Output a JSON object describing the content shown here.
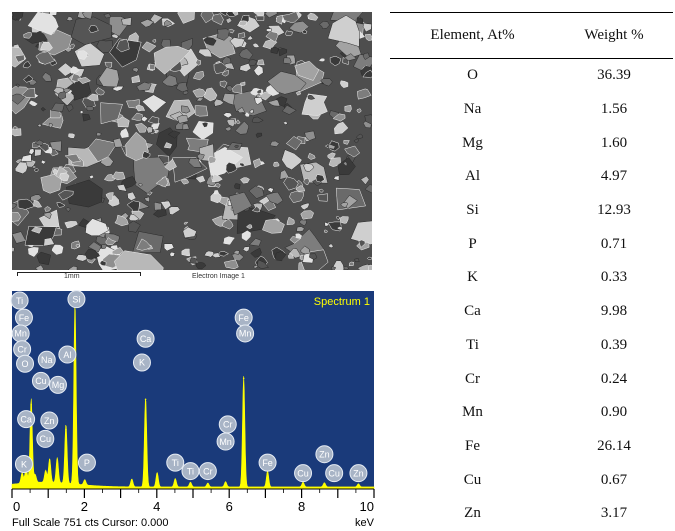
{
  "sem": {
    "scale_label": "1mm",
    "image_label": "Electron Image 1"
  },
  "chart_data": {
    "type": "line",
    "title": "Spectrum 1",
    "xlabel": "keV",
    "xlim": [
      0,
      10
    ],
    "ylim": [
      0,
      751
    ],
    "x_ticks": [
      0,
      2,
      4,
      6,
      8,
      10
    ],
    "x_tick_labels": [
      "0",
      "2",
      "4",
      "6",
      "8",
      "10"
    ],
    "footer": "Full Scale 751 cts Cursor: 0.000",
    "colors": {
      "background": "#1a3a7a",
      "spectrum": "#ffff00",
      "axis": "#000000",
      "title": "#ffff00"
    },
    "peaks": [
      {
        "x": 0.28,
        "y": 40
      },
      {
        "x": 0.39,
        "y": 60
      },
      {
        "x": 0.53,
        "y": 320
      },
      {
        "x": 0.64,
        "y": 30
      },
      {
        "x": 0.93,
        "y": 45
      },
      {
        "x": 1.04,
        "y": 90
      },
      {
        "x": 1.25,
        "y": 95
      },
      {
        "x": 1.49,
        "y": 225
      },
      {
        "x": 1.74,
        "y": 690
      },
      {
        "x": 2.01,
        "y": 20
      },
      {
        "x": 3.31,
        "y": 30
      },
      {
        "x": 3.69,
        "y": 340
      },
      {
        "x": 4.01,
        "y": 55
      },
      {
        "x": 4.51,
        "y": 32
      },
      {
        "x": 4.93,
        "y": 18
      },
      {
        "x": 5.41,
        "y": 15
      },
      {
        "x": 5.9,
        "y": 20
      },
      {
        "x": 6.4,
        "y": 420
      },
      {
        "x": 7.06,
        "y": 60
      },
      {
        "x": 8.04,
        "y": 18
      },
      {
        "x": 8.63,
        "y": 16
      },
      {
        "x": 9.57,
        "y": 12
      }
    ],
    "annotations": [
      {
        "text": "Ti",
        "x": 0.21,
        "y": 715
      },
      {
        "text": "Fe",
        "x": 0.33,
        "y": 650
      },
      {
        "text": "Mn",
        "x": 0.24,
        "y": 590
      },
      {
        "text": "Cr",
        "x": 0.28,
        "y": 530
      },
      {
        "text": "O",
        "x": 0.36,
        "y": 475
      },
      {
        "text": "Na",
        "x": 0.96,
        "y": 490
      },
      {
        "text": "Al",
        "x": 1.53,
        "y": 510
      },
      {
        "text": "Cu",
        "x": 0.8,
        "y": 410
      },
      {
        "text": "Mg",
        "x": 1.27,
        "y": 395
      },
      {
        "text": "Ca",
        "x": 0.39,
        "y": 265
      },
      {
        "text": "Zn",
        "x": 1.03,
        "y": 260
      },
      {
        "text": "Cu",
        "x": 0.92,
        "y": 190
      },
      {
        "text": "K",
        "x": 0.33,
        "y": 95
      },
      {
        "text": "Si",
        "x": 1.78,
        "y": 720
      },
      {
        "text": "P",
        "x": 2.07,
        "y": 100
      },
      {
        "text": "Ca",
        "x": 3.69,
        "y": 570
      },
      {
        "text": "K",
        "x": 3.59,
        "y": 480
      },
      {
        "text": "Ti",
        "x": 4.51,
        "y": 100
      },
      {
        "text": "Ti",
        "x": 4.93,
        "y": 68
      },
      {
        "text": "Cr",
        "x": 5.41,
        "y": 68
      },
      {
        "text": "Cr",
        "x": 5.96,
        "y": 245
      },
      {
        "text": "Mn",
        "x": 5.9,
        "y": 180
      },
      {
        "text": "Fe",
        "x": 6.4,
        "y": 650
      },
      {
        "text": "Mn",
        "x": 6.44,
        "y": 590
      },
      {
        "text": "Fe",
        "x": 7.06,
        "y": 100
      },
      {
        "text": "Cu",
        "x": 8.04,
        "y": 60
      },
      {
        "text": "Zn",
        "x": 8.63,
        "y": 132
      },
      {
        "text": "Cu",
        "x": 8.9,
        "y": 60
      },
      {
        "text": "Zn",
        "x": 9.57,
        "y": 60
      }
    ]
  },
  "table": {
    "headers": [
      "Element, At%",
      "Weight %"
    ],
    "rows": [
      [
        "O",
        "36.39"
      ],
      [
        "Na",
        "1.56"
      ],
      [
        "Mg",
        "1.60"
      ],
      [
        "Al",
        "4.97"
      ],
      [
        "Si",
        "12.93"
      ],
      [
        "P",
        "0.71"
      ],
      [
        "K",
        "0.33"
      ],
      [
        "Ca",
        "9.98"
      ],
      [
        "Ti",
        "0.39"
      ],
      [
        "Cr",
        "0.24"
      ],
      [
        "Mn",
        "0.90"
      ],
      [
        "Fe",
        "26.14"
      ],
      [
        "Cu",
        "0.67"
      ],
      [
        "Zn",
        "3.17"
      ]
    ]
  }
}
